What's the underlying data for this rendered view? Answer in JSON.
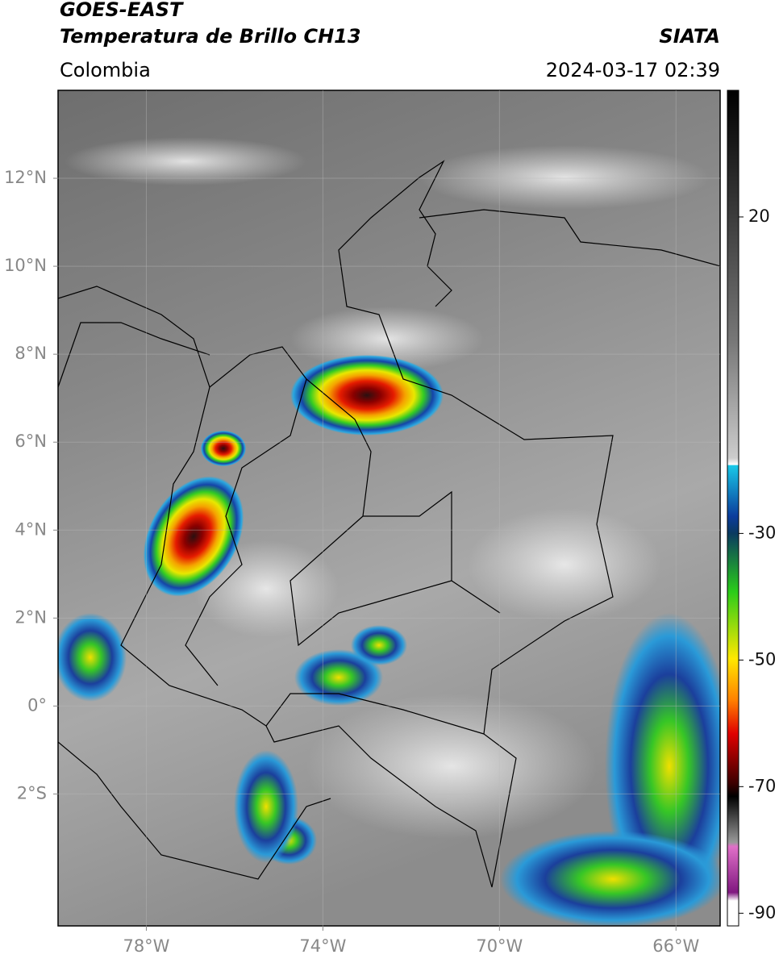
{
  "header": {
    "title": "GOES-EAST",
    "subtitle": "Temperatura de Brillo CH13",
    "agency": "SIATA",
    "region": "Colombia",
    "timestamp": "2024-03-17 02:39"
  },
  "map": {
    "xlim": [
      -80,
      -65
    ],
    "ylim": [
      -5,
      14
    ],
    "xticks": [
      {
        "value": -78,
        "label": "78°W"
      },
      {
        "value": -74,
        "label": "74°W"
      },
      {
        "value": -70,
        "label": "70°W"
      },
      {
        "value": -66,
        "label": "66°W"
      }
    ],
    "yticks": [
      {
        "value": 12,
        "label": "12°N"
      },
      {
        "value": 10,
        "label": "10°N"
      },
      {
        "value": 8,
        "label": "8°N"
      },
      {
        "value": 6,
        "label": "6°N"
      },
      {
        "value": 4,
        "label": "4°N"
      },
      {
        "value": 2,
        "label": "2°N"
      },
      {
        "value": 0,
        "label": "0°"
      },
      {
        "value": -2,
        "label": "2°S"
      }
    ]
  },
  "colorbar": {
    "lim": [
      -92,
      40
    ],
    "ticks": [
      20,
      -30,
      -50,
      -70,
      -90
    ]
  }
}
